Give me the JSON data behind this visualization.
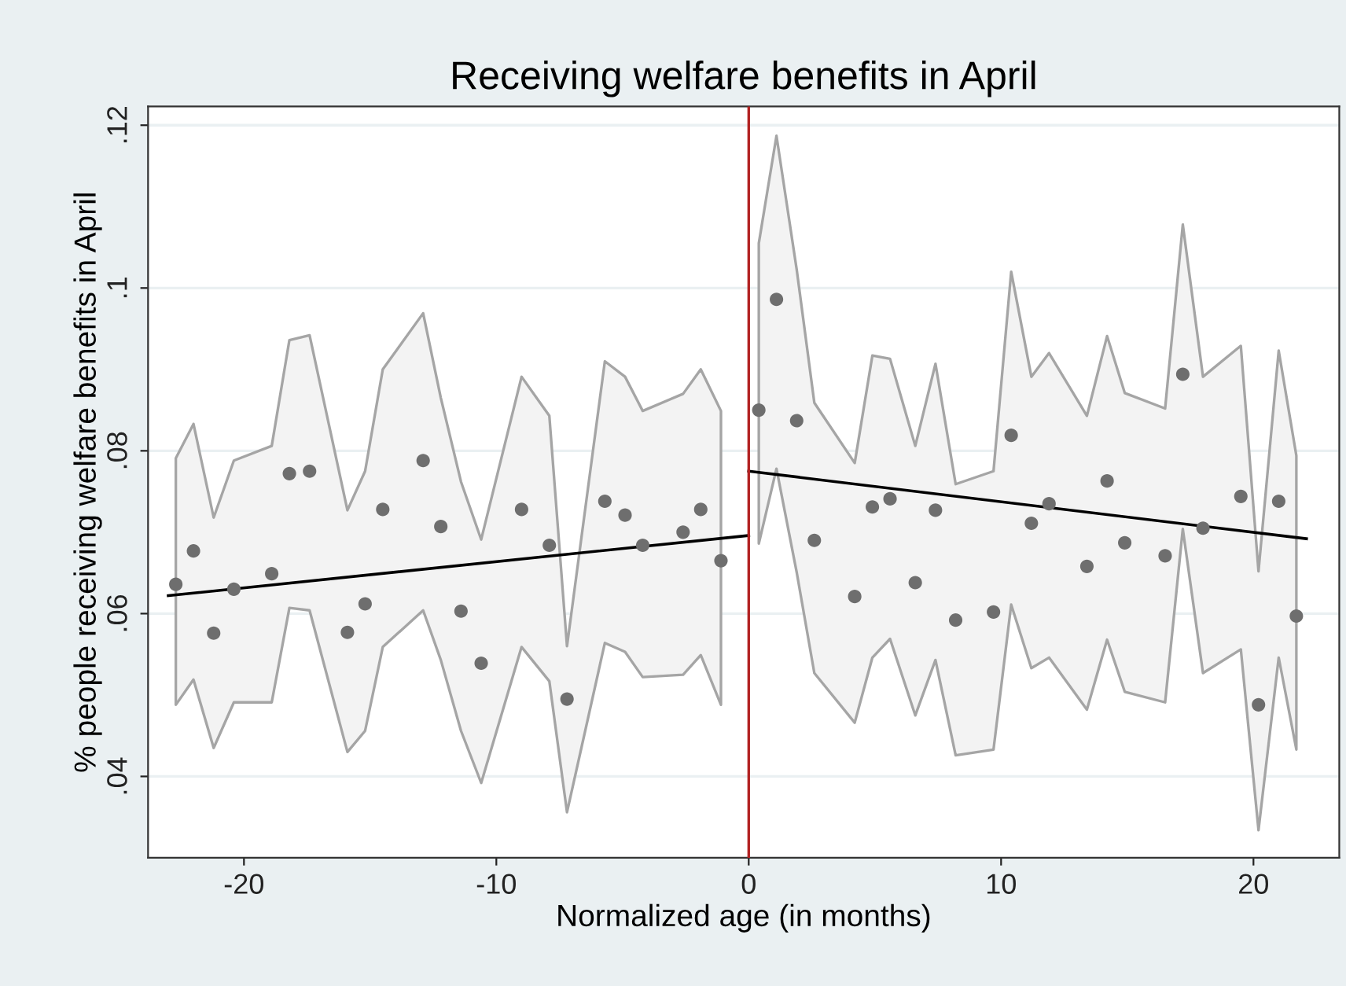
{
  "chart_data": {
    "type": "scatter",
    "title": "Receiving welfare benefits in April",
    "xlabel": "Normalized age (in months)",
    "ylabel": "% people receiving welfare benefits in April",
    "xlim": [
      -23.8,
      23.4
    ],
    "xticks": [
      -20,
      -10,
      0,
      10,
      20
    ],
    "ylim": [
      0.03,
      0.1223
    ],
    "yticks": [
      {
        "value": 0.04,
        "label": ".04"
      },
      {
        "value": 0.06,
        "label": ".06"
      },
      {
        "value": 0.08,
        "label": ".08"
      },
      {
        "value": 0.1,
        "label": ".1"
      },
      {
        "value": 0.12,
        "label": ".12"
      }
    ],
    "grid": "y",
    "series": [
      {
        "marker": "circle",
        "color": "#6e6e6e",
        "x": [
          -22.7,
          -22.0,
          -21.2,
          -20.4,
          -18.9,
          -18.2,
          -17.4,
          -15.9,
          -15.2,
          -14.5,
          -12.9,
          -12.2,
          -11.4,
          -10.6,
          -9.0,
          -7.9,
          -7.2,
          -5.7,
          -4.9,
          -4.2,
          -2.6,
          -1.9,
          -1.1
        ],
        "values": [
          0.0636,
          0.0677,
          0.0576,
          0.063,
          0.0649,
          0.0772,
          0.0775,
          0.0577,
          0.0612,
          0.0728,
          0.0788,
          0.0707,
          0.0603,
          0.0539,
          0.0728,
          0.0684,
          0.0495,
          0.0738,
          0.0721,
          0.0684,
          0.07,
          0.0728,
          0.0665
        ],
        "lower": [
          0.0488,
          0.0519,
          0.0435,
          0.0491,
          0.0491,
          0.0607,
          0.0604,
          0.043,
          0.0456,
          0.0559,
          0.0604,
          0.0543,
          0.0456,
          0.0392,
          0.0559,
          0.0517,
          0.0356,
          0.0564,
          0.0553,
          0.0522,
          0.0525,
          0.0549,
          0.0488
        ],
        "upper": [
          0.0791,
          0.0833,
          0.0718,
          0.0788,
          0.0806,
          0.0936,
          0.0942,
          0.0727,
          0.0775,
          0.09,
          0.0969,
          0.0865,
          0.0762,
          0.0691,
          0.0891,
          0.0843,
          0.056,
          0.091,
          0.0891,
          0.0849,
          0.087,
          0.09,
          0.0849
        ]
      },
      {
        "marker": "circle",
        "color": "#6e6e6e",
        "x": [
          0.4,
          1.1,
          1.9,
          2.6,
          4.2,
          4.9,
          5.6,
          6.6,
          7.4,
          8.2,
          9.7,
          10.4,
          11.2,
          11.9,
          13.4,
          14.2,
          14.9,
          16.5,
          17.2,
          18.0,
          19.5,
          20.2,
          21.0,
          21.7
        ],
        "values": [
          0.085,
          0.0986,
          0.0837,
          0.069,
          0.0621,
          0.0731,
          0.0741,
          0.0638,
          0.0727,
          0.0592,
          0.0602,
          0.0819,
          0.0711,
          0.0735,
          0.0658,
          0.0763,
          0.0687,
          0.0671,
          0.0894,
          0.0705,
          0.0744,
          0.0488,
          0.0738,
          0.0597
        ],
        "lower": [
          0.0686,
          0.0778,
          0.0651,
          0.0527,
          0.0466,
          0.0546,
          0.0569,
          0.0475,
          0.0543,
          0.0426,
          0.0433,
          0.0611,
          0.0533,
          0.0546,
          0.0482,
          0.0568,
          0.0504,
          0.0491,
          0.0704,
          0.0527,
          0.0556,
          0.0334,
          0.0546,
          0.0433
        ],
        "upper": [
          0.1055,
          0.1187,
          0.1023,
          0.0859,
          0.0785,
          0.0917,
          0.0913,
          0.0806,
          0.0907,
          0.0759,
          0.0775,
          0.102,
          0.0891,
          0.092,
          0.0843,
          0.0941,
          0.0871,
          0.0852,
          0.1078,
          0.0891,
          0.0929,
          0.0652,
          0.0923,
          0.0794
        ]
      },
      {
        "type": "line",
        "color": "#000000",
        "x": [
          -23.0,
          0
        ],
        "values": [
          0.0622,
          0.0696
        ]
      },
      {
        "type": "line",
        "color": "#000000",
        "x": [
          0,
          22.1
        ],
        "values": [
          0.0775,
          0.0692
        ]
      }
    ],
    "ref_lines": [
      {
        "axis": "x",
        "value": 0,
        "color": "#b22222"
      }
    ]
  }
}
